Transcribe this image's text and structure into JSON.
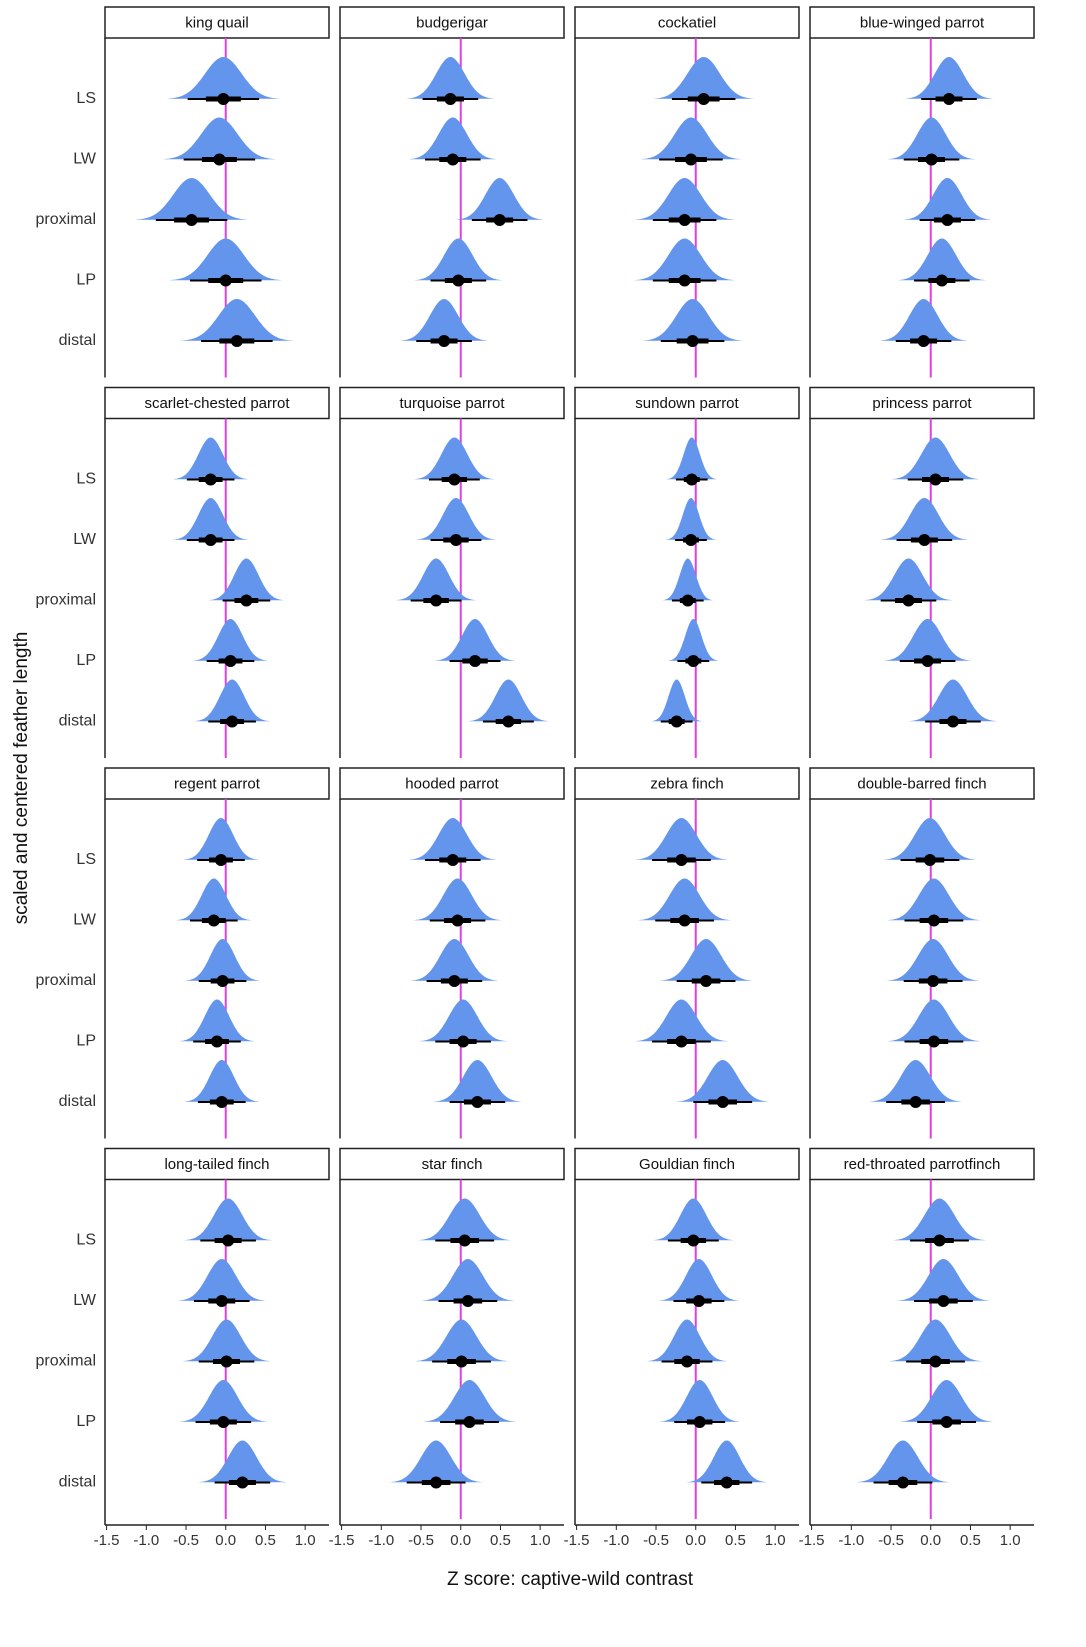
{
  "chart_data": {
    "type": "halfeye",
    "x_label": "Z score: captive-wild contrast",
    "y_label": "scaled and centered feather length",
    "categories": [
      "LS",
      "LW",
      "proximal",
      "LP",
      "distal"
    ],
    "xlim": [
      -1.52,
      1.3
    ],
    "xticks": [
      -1.5,
      {
        "value": -1.0,
        "label": "-1.0"
      },
      -0.5,
      {
        "value": 0.0,
        "label": "0.0"
      },
      0.5,
      {
        "value": 1.0,
        "label": "1.0"
      }
    ],
    "reference_line": 0,
    "reference_color": "#e040e0",
    "density_color": "#6495ed",
    "point_color": "#000000",
    "facets": [
      {
        "title": "king quail",
        "values": [
          -0.03,
          -0.08,
          -0.43,
          0.0,
          0.14
        ],
        "err95": 0.45,
        "err66": 0.22
      },
      {
        "title": "budgerigar",
        "values": [
          -0.13,
          -0.1,
          0.49,
          -0.03,
          -0.21
        ],
        "err95": 0.35,
        "err66": 0.17
      },
      {
        "title": "cockatiel",
        "values": [
          0.1,
          -0.06,
          -0.14,
          -0.14,
          -0.04
        ],
        "err95": 0.4,
        "err66": 0.2
      },
      {
        "title": "blue-winged parrot",
        "values": [
          0.23,
          0.01,
          0.21,
          0.14,
          -0.09
        ],
        "err95": 0.35,
        "err66": 0.17
      },
      {
        "title": "scarlet-chested parrot",
        "values": [
          -0.19,
          -0.19,
          0.26,
          0.06,
          0.08
        ],
        "err95": 0.3,
        "err66": 0.15
      },
      {
        "title": "turquoise parrot",
        "values": [
          -0.08,
          -0.06,
          -0.31,
          0.18,
          0.6
        ],
        "err95": 0.32,
        "err66": 0.16
      },
      {
        "title": "sundown parrot",
        "values": [
          -0.05,
          -0.06,
          -0.1,
          -0.03,
          -0.24
        ],
        "err95": 0.2,
        "err66": 0.1
      },
      {
        "title": "princess parrot",
        "values": [
          0.06,
          -0.08,
          -0.28,
          -0.04,
          0.28
        ],
        "err95": 0.35,
        "err66": 0.17
      },
      {
        "title": "regent parrot",
        "values": [
          -0.06,
          -0.15,
          -0.04,
          -0.11,
          -0.05
        ],
        "err95": 0.3,
        "err66": 0.15
      },
      {
        "title": "hooded parrot",
        "values": [
          -0.1,
          -0.04,
          -0.08,
          0.03,
          0.21
        ],
        "err95": 0.35,
        "err66": 0.17
      },
      {
        "title": "zebra finch",
        "values": [
          -0.18,
          -0.14,
          0.13,
          -0.18,
          0.34
        ],
        "err95": 0.37,
        "err66": 0.18
      },
      {
        "title": "double-barred finch",
        "values": [
          -0.01,
          0.04,
          0.03,
          0.04,
          -0.19
        ],
        "err95": 0.37,
        "err66": 0.18
      },
      {
        "title": "long-tailed finch",
        "values": [
          0.03,
          -0.05,
          0.01,
          -0.03,
          0.21
        ],
        "err95": 0.35,
        "err66": 0.17
      },
      {
        "title": "star finch",
        "values": [
          0.05,
          0.09,
          0.01,
          0.11,
          -0.31
        ],
        "err95": 0.37,
        "err66": 0.18
      },
      {
        "title": "Gouldian finch",
        "values": [
          -0.03,
          0.04,
          -0.11,
          0.05,
          0.39
        ],
        "err95": 0.32,
        "err66": 0.16
      },
      {
        "title": "red-throated parrotfinch",
        "values": [
          0.11,
          0.16,
          0.06,
          0.2,
          -0.35
        ],
        "err95": 0.37,
        "err66": 0.18
      }
    ]
  }
}
